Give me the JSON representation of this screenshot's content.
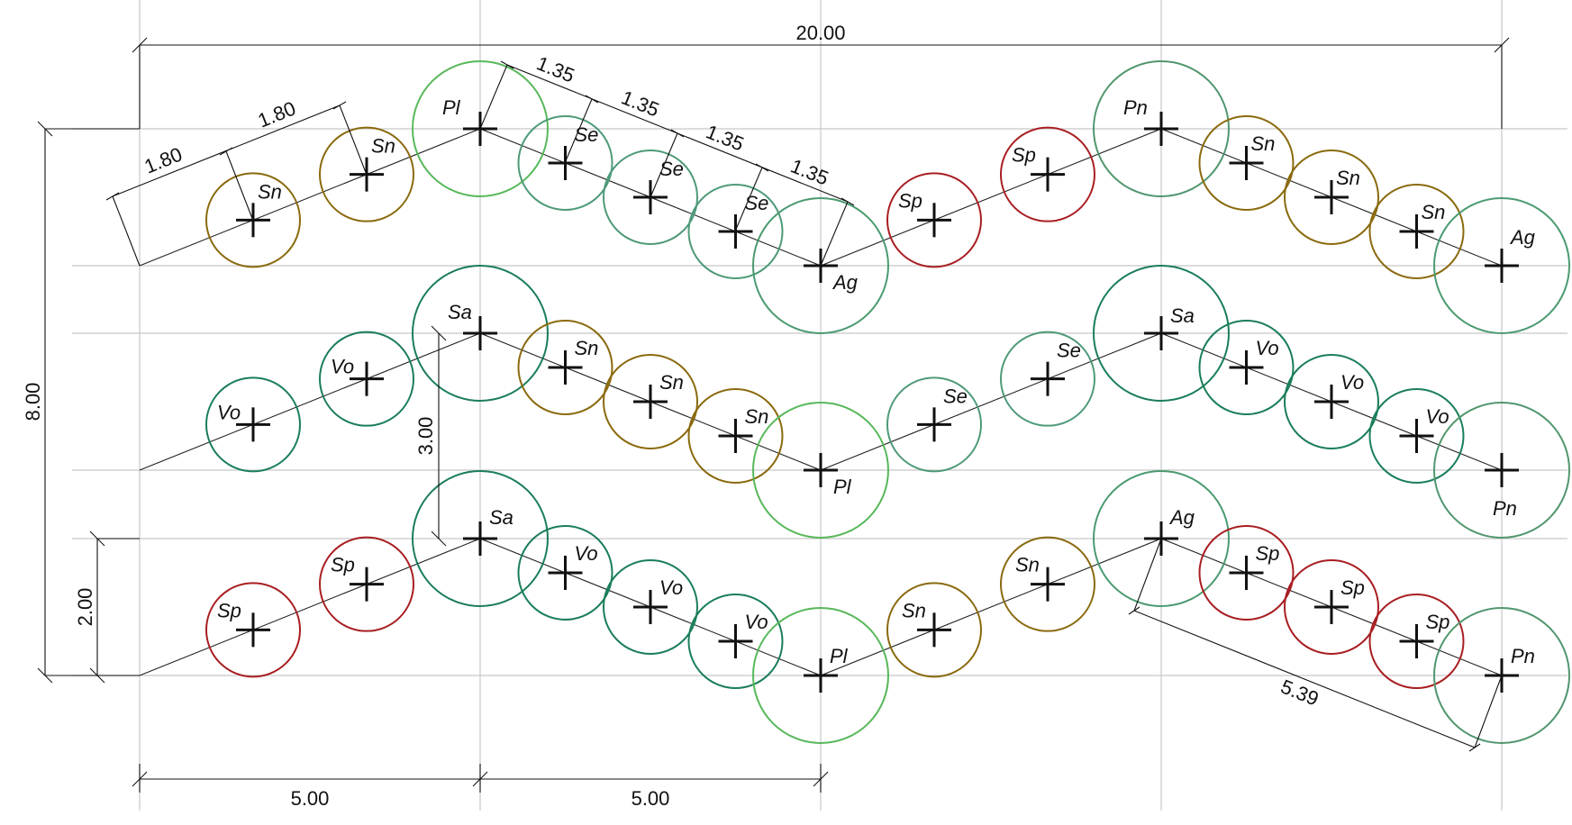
{
  "species_colors": {
    "Sn": "#8a6a0e",
    "Se": "#4e9a78",
    "Pl": "#58b85a",
    "Ag": "#4a9a70",
    "Sp": "#a81e22",
    "Pn": "#50966e",
    "Sa": "#1a7e58",
    "Vo": "#1a7e58"
  },
  "rows": [
    {
      "plants": [
        {
          "code": "Sn"
        },
        {
          "code": "Sn"
        },
        {
          "code": "Pl"
        },
        {
          "code": "Se"
        },
        {
          "code": "Se"
        },
        {
          "code": "Se"
        },
        {
          "code": "Ag"
        },
        {
          "code": "Sp"
        },
        {
          "code": "Sp"
        },
        {
          "code": "Pn"
        },
        {
          "code": "Sn"
        },
        {
          "code": "Sn"
        },
        {
          "code": "Sn"
        },
        {
          "code": "Ag"
        }
      ]
    },
    {
      "plants": [
        {
          "code": "Vo"
        },
        {
          "code": "Vo"
        },
        {
          "code": "Sa"
        },
        {
          "code": "Sn"
        },
        {
          "code": "Sn"
        },
        {
          "code": "Sn"
        },
        {
          "code": "Pl"
        },
        {
          "code": "Se"
        },
        {
          "code": "Se"
        },
        {
          "code": "Sa"
        },
        {
          "code": "Vo"
        },
        {
          "code": "Vo"
        },
        {
          "code": "Vo"
        },
        {
          "code": "Pn"
        }
      ]
    },
    {
      "plants": [
        {
          "code": "Sp"
        },
        {
          "code": "Sp"
        },
        {
          "code": "Sa"
        },
        {
          "code": "Vo"
        },
        {
          "code": "Vo"
        },
        {
          "code": "Vo"
        },
        {
          "code": "Pl"
        },
        {
          "code": "Sn"
        },
        {
          "code": "Sn"
        },
        {
          "code": "Ag"
        },
        {
          "code": "Sp"
        },
        {
          "code": "Sp"
        },
        {
          "code": "Sp"
        },
        {
          "code": "Pn"
        }
      ]
    }
  ],
  "dimensions": {
    "overall_width": "20.00",
    "overall_height": "8.00",
    "bottom_left": "5.00",
    "bottom_right": "5.00",
    "row_offset": "3.00",
    "wave_height": "2.00",
    "spacing_a1": "1.80",
    "spacing_a2": "1.80",
    "spacing_b1": "1.35",
    "spacing_b2": "1.35",
    "spacing_b3": "1.35",
    "spacing_b4": "1.35",
    "diagonal": "5.39"
  }
}
